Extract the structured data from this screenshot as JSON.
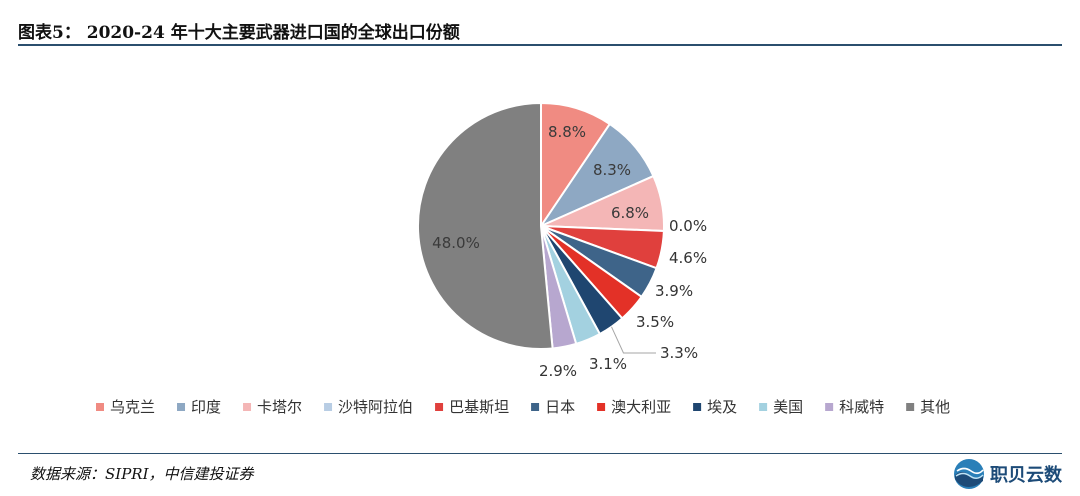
{
  "header": {
    "title": "图表5： 2020-24 年十大主要武器进口国的全球出口份额"
  },
  "footer": {
    "source": "数据来源：SIPRI，中信建投证券",
    "logo_text": "职贝云数"
  },
  "chart_data": {
    "type": "pie",
    "slices": [
      {
        "name": "乌克兰",
        "value": 8.8,
        "label": "8.8%",
        "color": "#f08b82"
      },
      {
        "name": "印度",
        "value": 8.3,
        "label": "8.3%",
        "color": "#8ea8c3"
      },
      {
        "name": "卡塔尔",
        "value": 6.8,
        "label": "6.8%",
        "color": "#f4b6b6"
      },
      {
        "name": "沙特阿拉伯",
        "value": 0.0,
        "label": "0.0%",
        "color": "#b8cde4"
      },
      {
        "name": "巴基斯坦",
        "value": 4.6,
        "label": "4.6%",
        "color": "#e0403d"
      },
      {
        "name": "日本",
        "value": 3.9,
        "label": "3.9%",
        "color": "#3e6489"
      },
      {
        "name": "澳大利亚",
        "value": 3.5,
        "label": "3.5%",
        "color": "#e33127"
      },
      {
        "name": "埃及",
        "value": 3.3,
        "label": "3.3%",
        "color": "#1f4670"
      },
      {
        "name": "美国",
        "value": 3.1,
        "label": "3.1%",
        "color": "#a3d1e0"
      },
      {
        "name": "科威特",
        "value": 2.9,
        "label": "2.9%",
        "color": "#b7a7cf"
      },
      {
        "name": "其他",
        "value": 48.0,
        "label": "48.0%",
        "color": "#808080"
      }
    ],
    "legend_position": "bottom"
  }
}
